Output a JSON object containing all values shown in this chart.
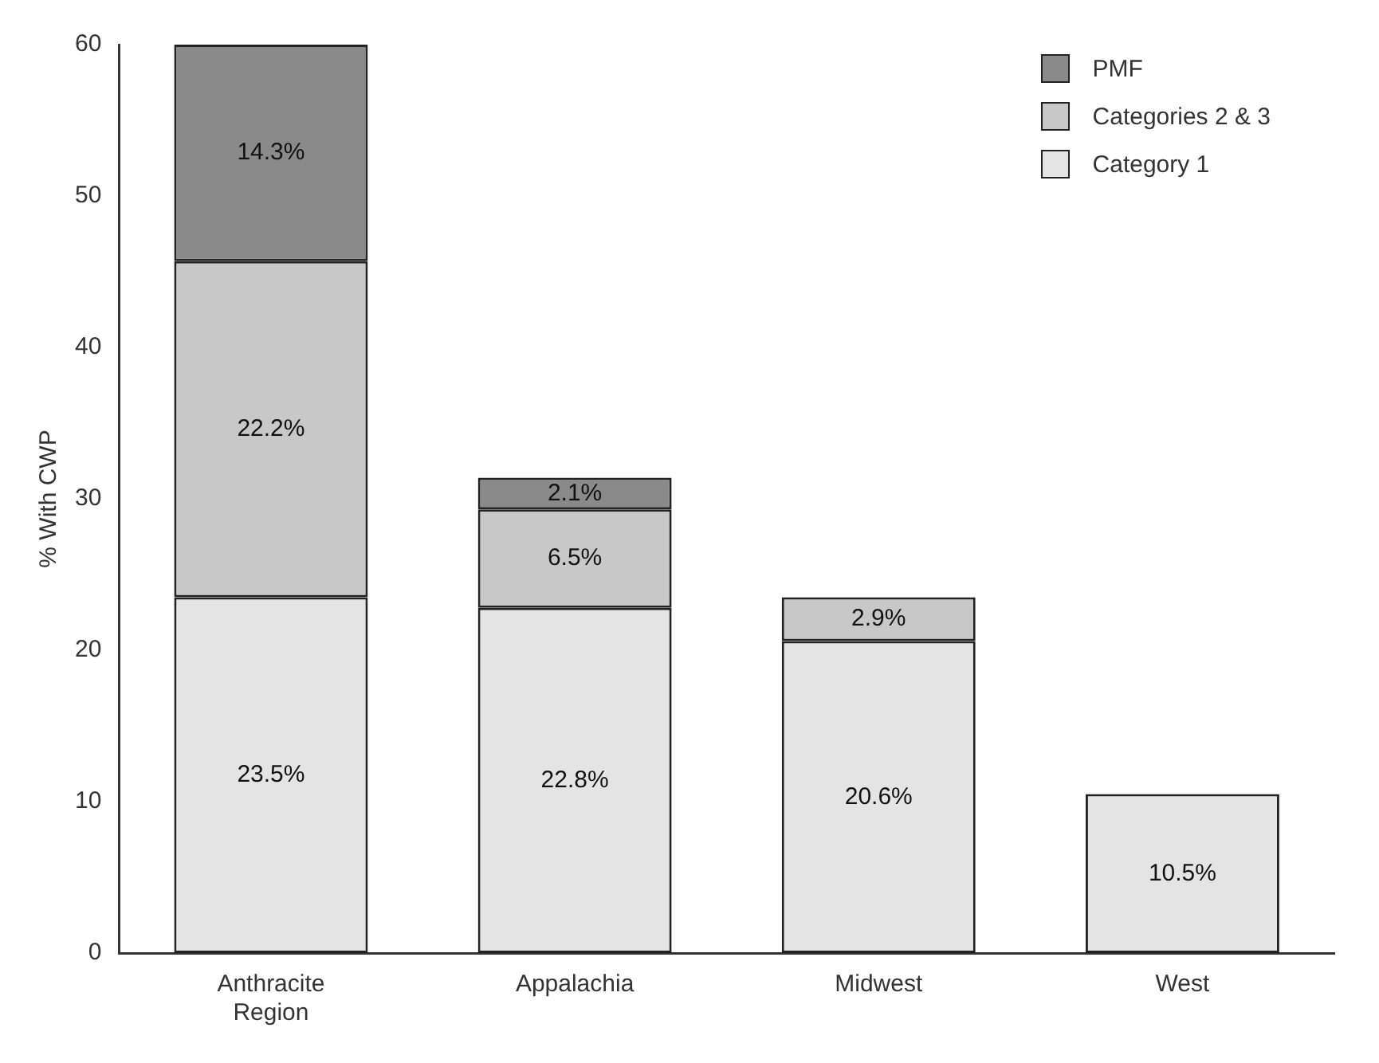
{
  "chart_data": {
    "type": "bar",
    "stacked": true,
    "ylabel": "% With CWP",
    "categories": [
      "Anthracite\nRegion",
      "Appalachia",
      "Midwest",
      "West"
    ],
    "series": [
      {
        "name": "Category 1",
        "color": "#e4e4e4",
        "values": [
          23.5,
          22.8,
          20.6,
          10.5
        ],
        "value_labels": [
          "23.5%",
          "22.8%",
          "20.6%",
          "10.5%"
        ]
      },
      {
        "name": "Categories 2 & 3",
        "color": "#c8c8c8",
        "values": [
          22.2,
          6.5,
          2.9,
          null
        ],
        "value_labels": [
          "22.2%",
          "6.5%",
          "2.9%",
          null
        ]
      },
      {
        "name": "PMF",
        "color": "#8a8a8a",
        "values": [
          14.3,
          2.1,
          null,
          null
        ],
        "value_labels": [
          "14.3%",
          "2.1%",
          null,
          null
        ]
      }
    ],
    "ylim": [
      0,
      60
    ],
    "yticks": [
      0,
      10,
      20,
      30,
      40,
      50,
      60
    ],
    "grid": false,
    "legend": "top right"
  }
}
